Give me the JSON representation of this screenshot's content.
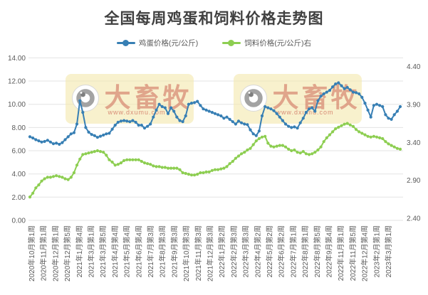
{
  "title": "全国每周鸡蛋和饲料价格走势图",
  "legend": {
    "items": [
      {
        "label": "鸡蛋价格(元/公斤)",
        "color": "#377fb4"
      },
      {
        "label": "饲料价格(元/公斤)右",
        "color": "#8dce51"
      }
    ]
  },
  "watermark": {
    "brand": "大畜牧",
    "url": "www.dxumu.com"
  },
  "colors": {
    "egg_line": "#377fb4",
    "feed_line": "#8dce51",
    "grid": "#e3e3e3",
    "axis_text": "#595959",
    "title_text": "#404040",
    "watermark_bg": "#f3e9ae",
    "watermark_text": "#c44a3c"
  },
  "chart_data": {
    "type": "line",
    "title": "全国每周鸡蛋和饲料价格走势图",
    "left_axis": {
      "min": 0,
      "max": 14,
      "ticks": [
        "0.00",
        "2.00",
        "4.00",
        "6.00",
        "8.00",
        "10.00",
        "12.00",
        "14.00"
      ]
    },
    "right_axis": {
      "min": 2.4,
      "max": 4.4,
      "ticks": [
        "2.40",
        "2.90",
        "3.40",
        "3.90",
        "4.40"
      ]
    },
    "x_labels": [
      "2020年10月第1周",
      "2020年11月第1周",
      "2020年12月第1周",
      "2020年12月第5周",
      "2021年1月第4周",
      "2021年3月第1周",
      "2021年3月第5周",
      "2021年4月第4周",
      "2021年5月第4周",
      "2021年6月第4周",
      "2021年7月第3周",
      "2021年8月第3周",
      "2021年9月第3周",
      "2021年10月第3周",
      "2021年11月第3周",
      "2021年12月第3周",
      "2022年1月第2周",
      "2022年2月第3周",
      "2022年3月第3周",
      "2022年4月第2周",
      "2022年5月第2周",
      "2022年6月第2周",
      "2022年7月第1周",
      "2022年8月第1周",
      "2022年8月第5周",
      "2022年9月第4周",
      "2022年11月第1周",
      "2022年11月第5周",
      "2022年12月第4周",
      "2023年2月第1周",
      "2023年3月第1周"
    ],
    "series": [
      {
        "id": "egg-price",
        "name": "鸡蛋价格(元/公斤)",
        "axis": "left",
        "color": "#377fb4",
        "values": [
          7.2,
          7.1,
          6.95,
          6.85,
          6.75,
          6.8,
          6.9,
          6.75,
          6.6,
          6.65,
          6.55,
          6.7,
          6.95,
          7.2,
          7.45,
          7.55,
          8.3,
          10.3,
          9.3,
          8.0,
          7.6,
          7.4,
          7.3,
          7.15,
          7.25,
          7.35,
          7.45,
          7.5,
          7.85,
          8.2,
          8.45,
          8.55,
          8.6,
          8.55,
          8.5,
          8.6,
          8.45,
          8.2,
          8.2,
          7.95,
          8.1,
          8.3,
          8.9,
          9.5,
          10.0,
          9.8,
          9.7,
          9.2,
          9.7,
          9.4,
          8.9,
          8.6,
          8.5,
          9.0,
          10.0,
          10.1,
          10.15,
          10.25,
          9.9,
          9.6,
          9.5,
          9.4,
          9.3,
          9.2,
          9.1,
          9.0,
          8.8,
          8.9,
          8.7,
          8.5,
          8.3,
          8.55,
          8.4,
          8.3,
          8.25,
          7.8,
          7.45,
          7.3,
          7.7,
          9.0,
          9.8,
          9.7,
          9.6,
          9.45,
          9.2,
          8.9,
          8.6,
          8.3,
          8.1,
          8.0,
          8.05,
          7.95,
          8.4,
          8.8,
          9.3,
          9.6,
          9.7,
          9.4,
          10.3,
          10.7,
          10.9,
          11.05,
          11.2,
          11.5,
          11.75,
          11.85,
          11.6,
          11.35,
          11.45,
          11.25,
          11.05,
          11.0,
          10.9,
          10.6,
          10.1,
          9.5,
          8.9,
          9.9,
          10.0,
          9.9,
          9.8,
          9.1,
          8.8,
          8.7,
          9.1,
          9.4,
          9.8
        ]
      },
      {
        "id": "feed-price",
        "name": "饲料价格(元/公斤)右",
        "axis": "right",
        "color": "#8dce51",
        "values": [
          2.68,
          2.73,
          2.8,
          2.84,
          2.89,
          2.92,
          2.94,
          2.94,
          2.95,
          2.96,
          2.95,
          2.94,
          2.92,
          2.91,
          2.94,
          3.0,
          3.1,
          3.18,
          3.24,
          3.25,
          3.26,
          3.27,
          3.28,
          3.29,
          3.28,
          3.27,
          3.23,
          3.17,
          3.14,
          3.1,
          3.11,
          3.13,
          3.16,
          3.17,
          3.17,
          3.17,
          3.17,
          3.17,
          3.15,
          3.13,
          3.12,
          3.11,
          3.09,
          3.08,
          3.08,
          3.07,
          3.07,
          3.06,
          3.06,
          3.06,
          3.06,
          3.04,
          3.0,
          2.99,
          2.98,
          2.97,
          2.97,
          2.98,
          3.0,
          3.0,
          3.01,
          3.01,
          3.03,
          3.04,
          3.04,
          3.05,
          3.06,
          3.08,
          3.12,
          3.15,
          3.19,
          3.22,
          3.25,
          3.27,
          3.3,
          3.32,
          3.37,
          3.42,
          3.45,
          3.47,
          3.48,
          3.39,
          3.35,
          3.34,
          3.35,
          3.36,
          3.36,
          3.34,
          3.31,
          3.29,
          3.3,
          3.27,
          3.26,
          3.28,
          3.25,
          3.24,
          3.25,
          3.27,
          3.3,
          3.34,
          3.41,
          3.46,
          3.5,
          3.54,
          3.58,
          3.6,
          3.62,
          3.64,
          3.65,
          3.63,
          3.61,
          3.57,
          3.54,
          3.52,
          3.5,
          3.48,
          3.47,
          3.48,
          3.47,
          3.46,
          3.45,
          3.41,
          3.38,
          3.36,
          3.34,
          3.32,
          3.31
        ]
      }
    ]
  }
}
